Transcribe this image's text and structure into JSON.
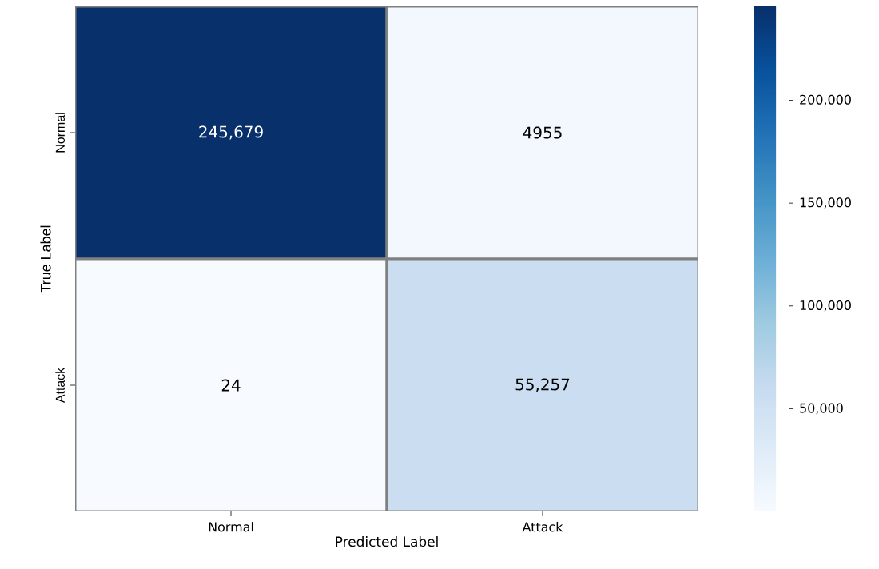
{
  "chart_data": {
    "type": "heatmap",
    "xlabel": "Predicted Label",
    "ylabel": "True Label",
    "categories": [
      "Normal",
      "Attack"
    ],
    "y_categories": [
      "Normal",
      "Attack"
    ],
    "cells": [
      [
        245679,
        4955
      ],
      [
        24,
        55257
      ]
    ],
    "cell_labels": [
      [
        "245,679",
        "4955"
      ],
      [
        "24",
        "55,257"
      ]
    ],
    "clim": [
      24,
      245679
    ],
    "cticks": [
      {
        "value": 50000,
        "label": "50,000"
      },
      {
        "value": 100000,
        "label": "100,000"
      },
      {
        "value": 150000,
        "label": "150,000"
      },
      {
        "value": 200000,
        "label": "200,000"
      }
    ]
  }
}
